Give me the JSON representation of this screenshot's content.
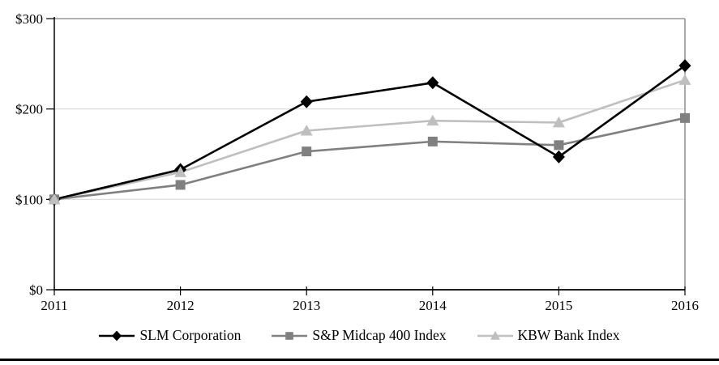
{
  "chart_data": {
    "type": "line",
    "title": "",
    "categories": [
      "2011",
      "2012",
      "2013",
      "2014",
      "2015",
      "2016"
    ],
    "series": [
      {
        "name": "SLM Corporation",
        "marker": "diamond",
        "color": "#000000",
        "values": [
          100,
          133,
          208,
          229,
          147,
          248
        ]
      },
      {
        "name": "S&P Midcap 400 Index",
        "marker": "square",
        "color": "#808080",
        "values": [
          100,
          116,
          153,
          164,
          160,
          190
        ]
      },
      {
        "name": "KBW Bank Index",
        "marker": "triangle",
        "color": "#BFBFBF",
        "values": [
          100,
          130,
          176,
          187,
          185,
          232
        ]
      }
    ],
    "xlabel": "",
    "ylabel": "",
    "ylim": [
      0,
      300
    ],
    "yticks": [
      {
        "label": "$0",
        "value": 0
      },
      {
        "label": "$100",
        "value": 100
      },
      {
        "label": "$200",
        "value": 200
      },
      {
        "label": "$300",
        "value": 300
      }
    ],
    "grid": "horizontal",
    "legend_position": "bottom",
    "colors": {
      "background": "#FFFFFF",
      "gridline": "#D9D9D9",
      "plot_border": "#808080",
      "axis": "#000000",
      "bottom_rule": "#000000",
      "text": "#000000"
    }
  }
}
